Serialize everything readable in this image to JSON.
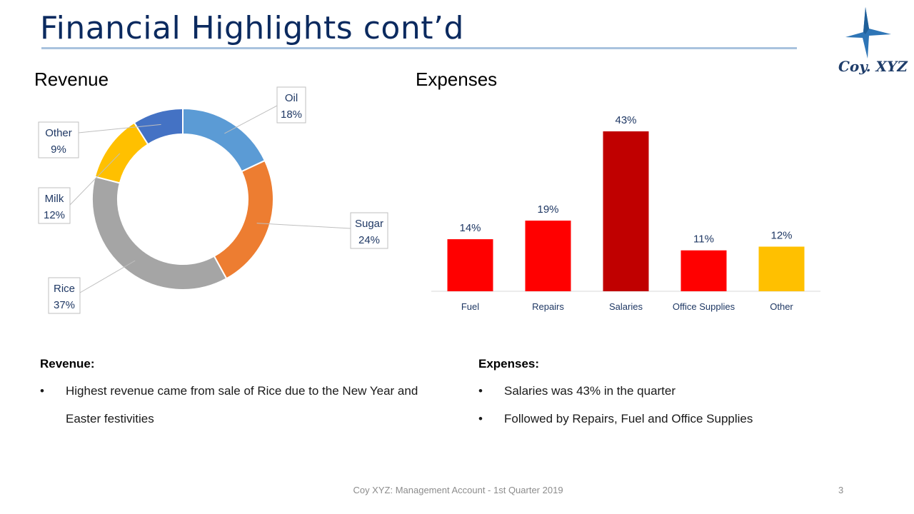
{
  "slide": {
    "title": "Financial Highlights cont’d",
    "logo_text": "Coy. XYZ",
    "footer": "Coy XYZ: Management Account - 1st Quarter 2019",
    "page_number": "3"
  },
  "revenue": {
    "section_title": "Revenue"
  },
  "expenses": {
    "section_title": "Expenses"
  },
  "chart_data": [
    {
      "type": "pie",
      "variant": "doughnut",
      "title": "Revenue",
      "categories": [
        "Oil",
        "Sugar",
        "Rice",
        "Milk",
        "Other"
      ],
      "values": [
        18,
        24,
        37,
        12,
        9
      ],
      "labels": [
        "18%",
        "24%",
        "37%",
        "12%",
        "9%"
      ],
      "colors": [
        "#5b9bd5",
        "#ed7d31",
        "#a5a5a5",
        "#ffc000",
        "#4472c4"
      ]
    },
    {
      "type": "bar",
      "title": "Expenses",
      "categories": [
        "Fuel",
        "Repairs",
        "Salaries",
        "Office Supplies",
        "Other"
      ],
      "values": [
        14,
        19,
        43,
        11,
        12
      ],
      "labels": [
        "14%",
        "19%",
        "43%",
        "11%",
        "12%"
      ],
      "colors": [
        "#ff0000",
        "#ff0000",
        "#c00000",
        "#ff0000",
        "#ffc000"
      ],
      "ylim": [
        0,
        43
      ]
    }
  ],
  "notes": {
    "revenue": {
      "heading": "Revenue:",
      "bullets": [
        {
          "mark": "•",
          "text": "Highest revenue came from sale of Rice due to the New Year and Easter festivities"
        }
      ]
    },
    "expenses": {
      "heading": "Expenses:",
      "bullets": [
        {
          "mark": "•",
          "text": "Salaries was 43% in the quarter"
        },
        {
          "mark": "•",
          "text": "Followed by Repairs, Fuel and Office Supplies"
        }
      ]
    }
  },
  "icons": {
    "logo": "star-logo-icon"
  },
  "colors": {
    "title": "#0b2a5f",
    "rule": "#a9c3de",
    "axis": "#d9d9d9",
    "label_text": "#1f3864"
  }
}
